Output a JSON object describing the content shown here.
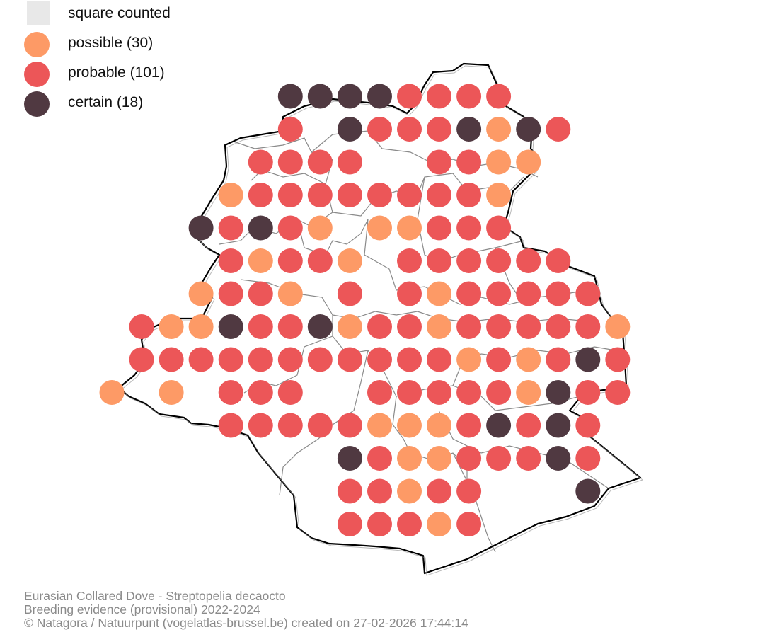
{
  "legend": {
    "items": [
      {
        "key": "counted",
        "label": "square counted",
        "shape": "square",
        "color": "#e8e8e8"
      },
      {
        "key": "possible",
        "label": "possible (30)",
        "shape": "circle",
        "color": "#fd9a66"
      },
      {
        "key": "probable",
        "label": "probable (101)",
        "shape": "circle",
        "color": "#ec5658"
      },
      {
        "key": "certain",
        "label": "certain (18)",
        "shape": "circle",
        "color": "#503941"
      }
    ]
  },
  "caption": {
    "species": "Eurasian Collared Dove - Streptopelia decaocto",
    "subtitle": "Breeding evidence (provisional) 2022-2024",
    "credit": "© Natagora / Natuurpunt (vogelatlas-brussel.be) created on 27-02-2026 17:44:14"
  },
  "map": {
    "boundary_color": "#000000",
    "municipality_line_color": "#8a8a8a",
    "grid": {
      "note_codes": "P = possible, R = probable, C = certain, . = no record",
      "rows": [
        "......CCCCRRRR.",
        "......R.CRRRCPCR",
        ".....RRRR..RRPP",
        "....PRRRRRRRRP",
        "...CRCRP.PPRRR",
        "....RPRRP.RRRRRR",
        "...PRRP.R.RPRRRRR",
        ".RPPCRRCPRRPRRRRRP",
        ".RRRRRRRRRRRPRPRCR",
        "P.P.RRR..RRRRRPCRR",
        "....RRRRRPPPRCRCR",
        "........CRPPRRRCR",
        "........RRPRR...C",
        "........RRRPR"
      ]
    }
  }
}
